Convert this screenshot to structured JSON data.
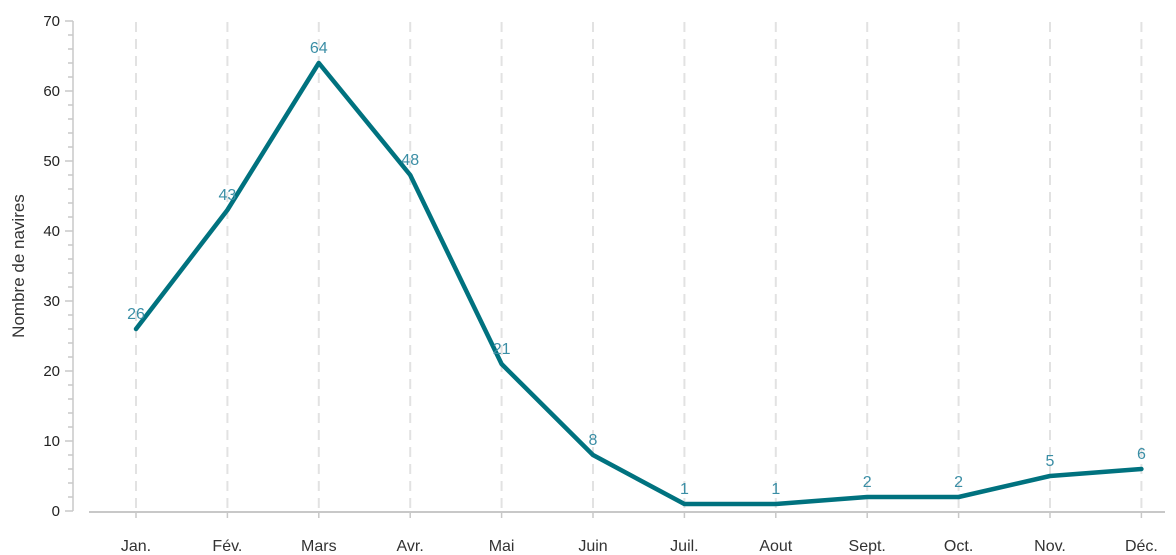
{
  "chart_data": {
    "type": "line",
    "categories": [
      "Jan.",
      "Fév.",
      "Mars",
      "Avr.",
      "Mai",
      "Juin",
      "Juil.",
      "Aout",
      "Sept.",
      "Oct.",
      "Nov.",
      "Déc."
    ],
    "series": [
      {
        "values": [
          26,
          43,
          64,
          48,
          21,
          8,
          1,
          1,
          2,
          2,
          5,
          6
        ]
      }
    ],
    "ylabel": "Nombre de navires",
    "ylim": [
      0,
      70
    ],
    "yticks": [
      0,
      10,
      20,
      30,
      40,
      50,
      60,
      70
    ],
    "line_color": "#00727f",
    "label_color": "#3b8ea5",
    "grid": "vertical dashed",
    "data_labels": true
  }
}
